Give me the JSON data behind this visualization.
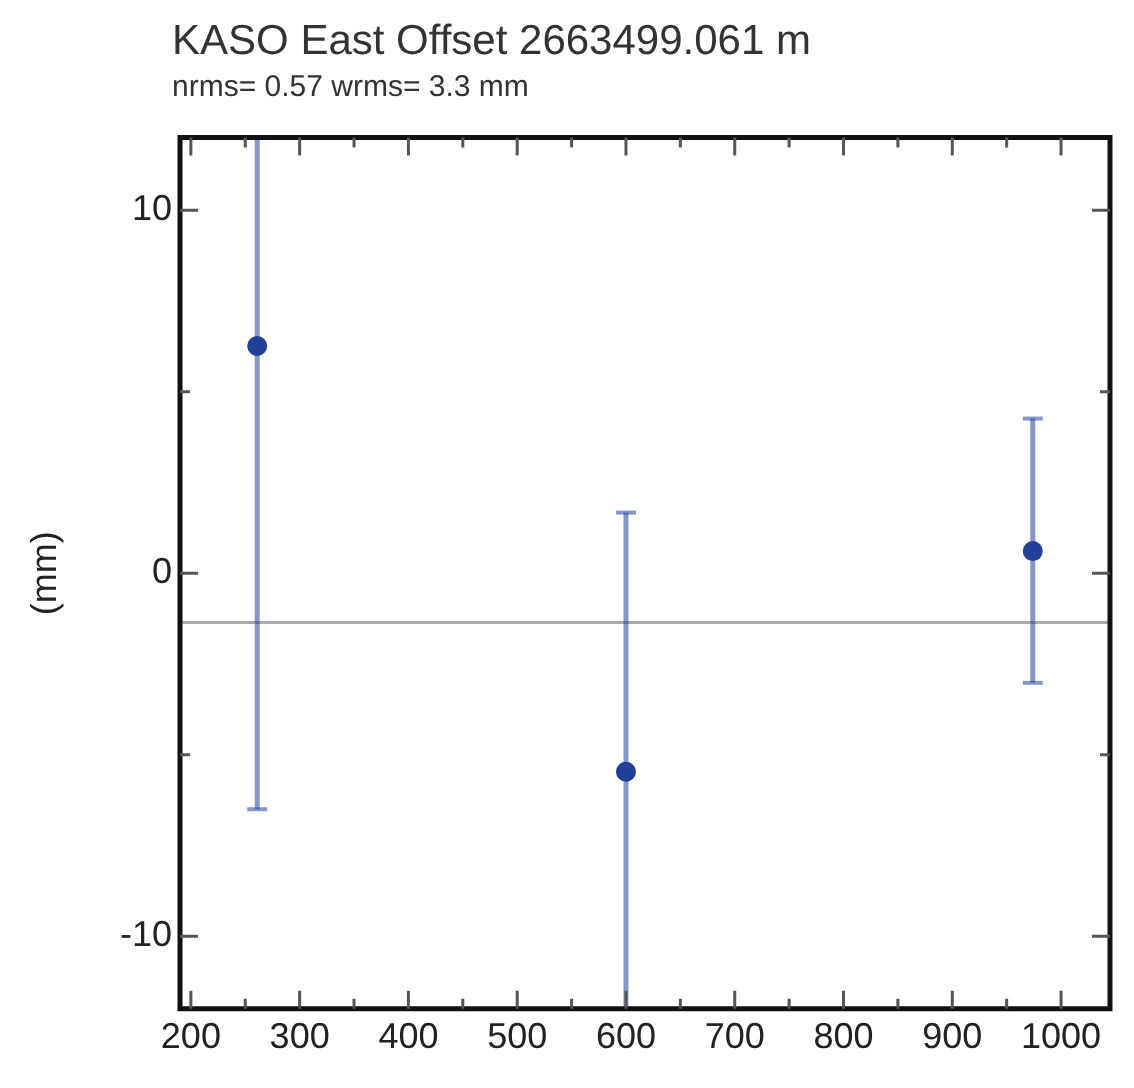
{
  "chart_data": {
    "type": "scatter",
    "title": "KASO  East Offset   2663499.061 m",
    "subtitle": "nrms=  0.57  wrms=   3.3 mm",
    "ylabel": "(mm)",
    "x": [
      261,
      600,
      974
    ],
    "series": [
      {
        "color": "#22409a",
        "values": [
          6.26,
          -5.47,
          0.61
        ],
        "errors": [
          [
            -6.5,
            12
          ],
          [
            -12,
            1.67
          ],
          [
            -3.02,
            4.26
          ]
        ]
      }
    ],
    "xlim": [
      190,
      1045
    ],
    "xticks": [
      200,
      {
        "value": 250,
        "label": null
      },
      300,
      {
        "value": 350,
        "label": null
      },
      400,
      {
        "value": 450,
        "label": null
      },
      500,
      {
        "value": 550,
        "label": null
      },
      600,
      {
        "value": 650,
        "label": null
      },
      700,
      {
        "value": 750,
        "label": null
      },
      800,
      {
        "value": 850,
        "label": null
      },
      900,
      {
        "value": 950,
        "label": null
      },
      1000
    ],
    "ylim": [
      -12,
      12
    ],
    "yticks": [
      -10,
      {
        "value": -5,
        "label": null
      },
      0,
      {
        "value": 5,
        "label": null
      },
      10
    ],
    "ref_lines": [
      {
        "axis": "y",
        "value": -1.36,
        "color": "#aaaaaa"
      }
    ],
    "marker": "circle",
    "grid": false,
    "legend": false
  }
}
